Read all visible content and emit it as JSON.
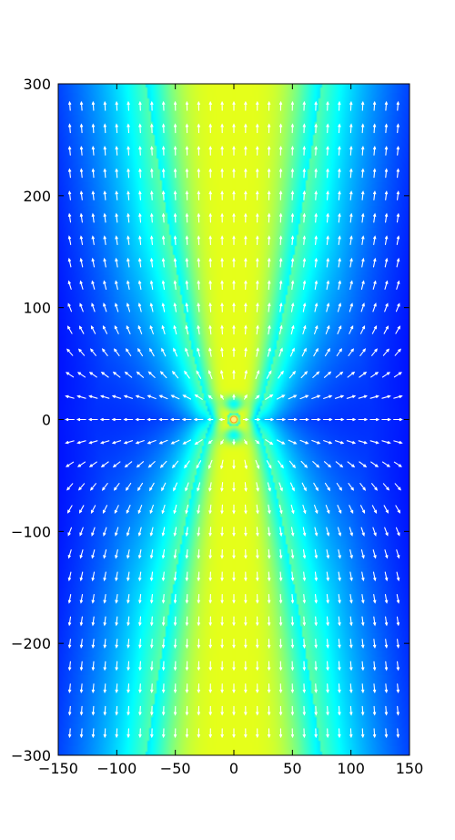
{
  "chart_data": {
    "type": "heatmap",
    "title": "",
    "xlabel": "",
    "ylabel": "",
    "xlim": [
      -150,
      150
    ],
    "ylim": [
      -300,
      300
    ],
    "x_ticks": [
      -150,
      -100,
      -50,
      0,
      50,
      100,
      150
    ],
    "y_ticks": [
      -300,
      -200,
      -100,
      0,
      100,
      200,
      300
    ],
    "x_tick_labels": [
      "−150",
      "−100",
      "−50",
      "0",
      "50",
      "100",
      "150"
    ],
    "y_tick_labels": [
      "−300",
      "−200",
      "−100",
      "0",
      "100",
      "200",
      "300"
    ],
    "colormap": "jet",
    "grid": false,
    "overlay": "quiver",
    "quiver_color": "#ffffff",
    "quiver_spacing": [
      10,
      20
    ],
    "field": {
      "source_position": [
        0,
        0
      ],
      "beam_axis": "vertical",
      "beam_half_width_at_origin": 18,
      "beam_half_width_at_edge": 75
    }
  },
  "colors": {
    "background_dark": "#0a1bd6",
    "background_mid": "#0f4cf5",
    "beam_edge": "#19b4f0",
    "beam_core": "#c8f23c",
    "source_highlight": "#fff27a"
  }
}
